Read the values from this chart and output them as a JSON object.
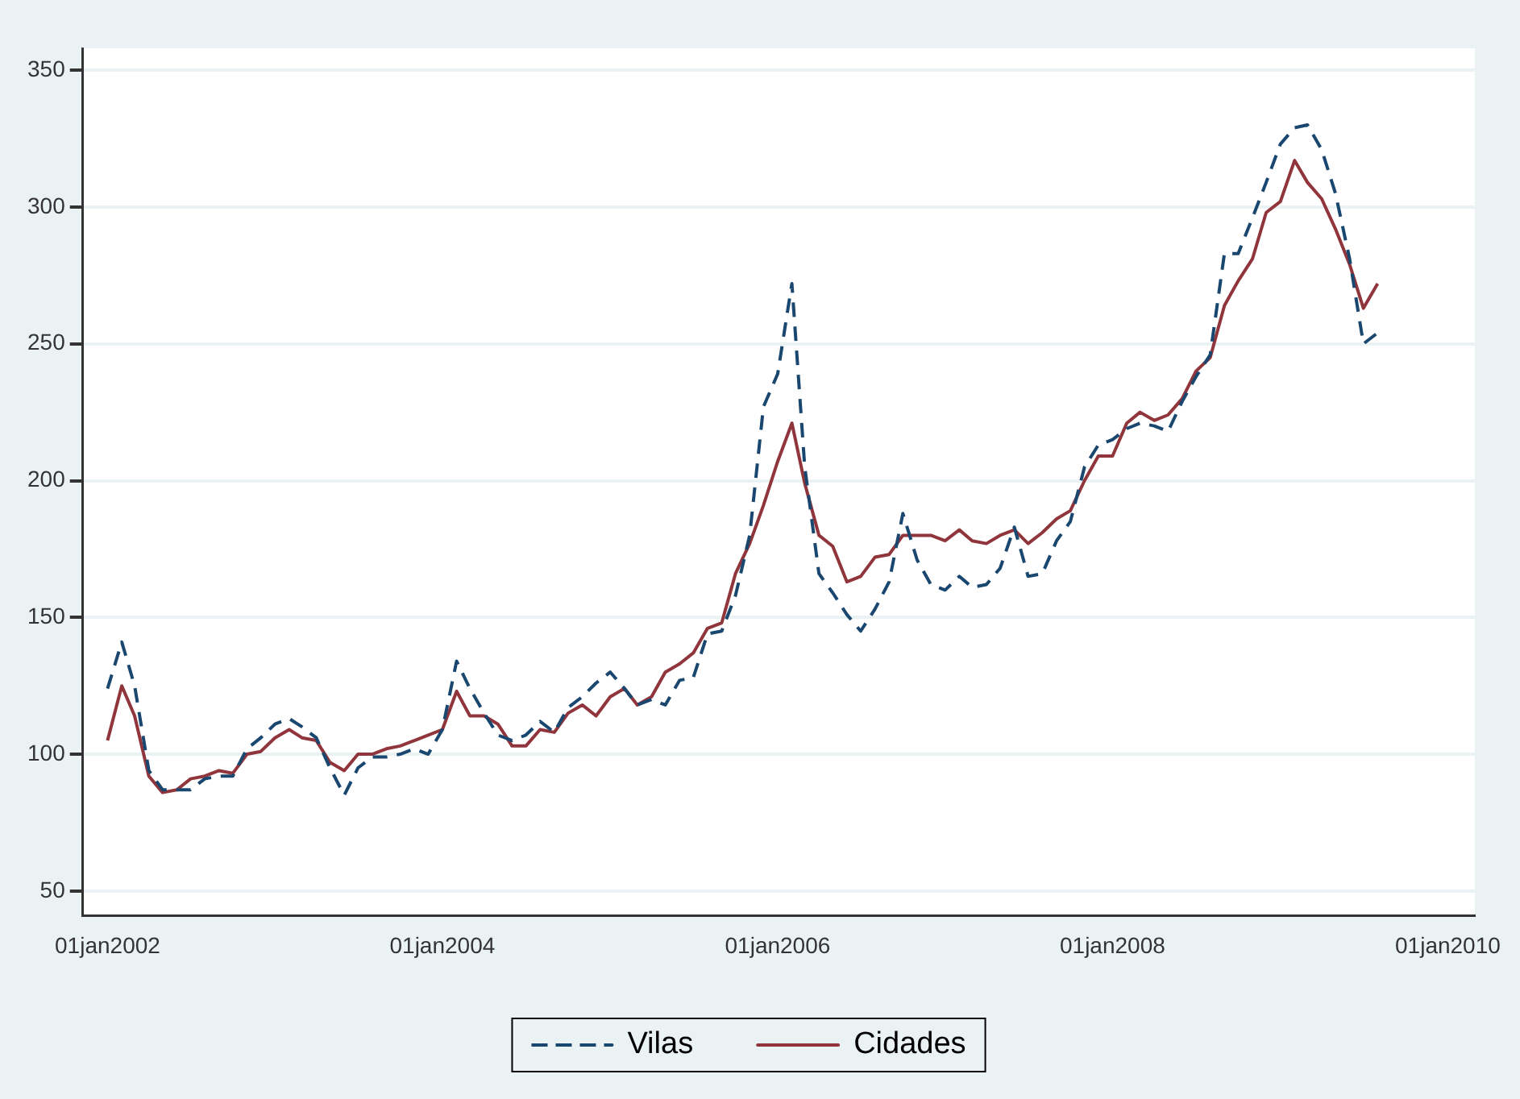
{
  "chart_data": {
    "type": "line",
    "x": [
      "2002-01",
      "2002-02",
      "2002-03",
      "2002-04",
      "2002-05",
      "2002-06",
      "2002-07",
      "2002-08",
      "2002-09",
      "2002-10",
      "2002-11",
      "2002-12",
      "2003-01",
      "2003-02",
      "2003-03",
      "2003-04",
      "2003-05",
      "2003-06",
      "2003-07",
      "2003-08",
      "2003-09",
      "2003-10",
      "2003-11",
      "2003-12",
      "2004-01",
      "2004-02",
      "2004-03",
      "2004-04",
      "2004-05",
      "2004-06",
      "2004-07",
      "2004-08",
      "2004-09",
      "2004-10",
      "2004-11",
      "2004-12",
      "2005-01",
      "2005-02",
      "2005-03",
      "2005-04",
      "2005-05",
      "2005-06",
      "2005-07",
      "2005-08",
      "2005-09",
      "2005-10",
      "2005-11",
      "2005-12",
      "2006-01",
      "2006-02",
      "2006-03",
      "2006-04",
      "2006-05",
      "2006-06",
      "2006-07",
      "2006-08",
      "2006-09",
      "2006-10",
      "2006-11",
      "2006-12",
      "2007-01",
      "2007-02",
      "2007-03",
      "2007-04",
      "2007-05",
      "2007-06",
      "2007-07",
      "2007-08",
      "2007-09",
      "2007-10",
      "2007-11",
      "2007-12",
      "2008-01",
      "2008-02",
      "2008-03",
      "2008-04",
      "2008-05",
      "2008-06",
      "2008-07",
      "2008-08",
      "2008-09",
      "2008-10",
      "2008-11",
      "2008-12",
      "2009-01",
      "2009-02",
      "2009-03",
      "2009-04",
      "2009-05",
      "2009-06",
      "2009-07",
      "2009-08"
    ],
    "series": [
      {
        "name": "Vilas",
        "color": "#1a476f",
        "line_style": "dashed",
        "values": [
          124,
          141,
          125,
          94,
          87,
          87,
          87,
          91,
          92,
          92,
          102,
          106,
          111,
          113,
          110,
          106,
          95,
          85,
          95,
          99,
          99,
          100,
          102,
          100,
          109,
          134,
          124,
          115,
          107,
          105,
          107,
          112,
          108,
          117,
          121,
          126,
          130,
          124,
          118,
          120,
          118,
          127,
          128,
          144,
          145,
          158,
          180,
          227,
          239,
          272,
          205,
          166,
          159,
          151,
          145,
          153,
          163,
          188,
          171,
          162,
          160,
          165,
          161,
          162,
          168,
          183,
          165,
          166,
          178,
          185,
          205,
          213,
          215,
          219,
          221,
          220,
          218,
          229,
          238,
          246,
          283,
          283,
          296,
          309,
          323,
          329,
          330,
          321,
          305,
          281,
          250,
          254
        ]
      },
      {
        "name": "Cidades",
        "color": "#90353b",
        "line_style": "solid",
        "values": [
          105,
          125,
          114,
          92,
          86,
          87,
          91,
          92,
          94,
          93,
          100,
          101,
          106,
          109,
          106,
          105,
          97,
          94,
          100,
          100,
          102,
          103,
          105,
          107,
          109,
          123,
          114,
          114,
          111,
          103,
          103,
          109,
          108,
          115,
          118,
          114,
          121,
          124,
          118,
          121,
          130,
          133,
          137,
          146,
          148,
          166,
          177,
          191,
          207,
          221,
          199,
          180,
          176,
          163,
          165,
          172,
          173,
          180,
          180,
          180,
          178,
          182,
          178,
          177,
          180,
          182,
          177,
          181,
          186,
          189,
          200,
          209,
          209,
          221,
          225,
          222,
          224,
          230,
          240,
          245,
          264,
          273,
          281,
          298,
          302,
          317,
          309,
          303,
          292,
          279,
          263,
          272
        ]
      }
    ],
    "xlim": [
      "2001-11-08",
      "2010-03"
    ],
    "xticks": [
      {
        "value": "2002-01-01",
        "label": "01jan2002"
      },
      {
        "value": "2004-01-01",
        "label": "01jan2004"
      },
      {
        "value": "2006-01-01",
        "label": "01jan2006"
      },
      {
        "value": "2008-01-01",
        "label": "01jan2008"
      },
      {
        "value": "2010-01-01",
        "label": "01jan2010"
      }
    ],
    "ylim": [
      41,
      358
    ],
    "yticks": [
      50,
      100,
      150,
      200,
      250,
      300,
      350
    ],
    "grid": "y",
    "legend": "bottom"
  }
}
